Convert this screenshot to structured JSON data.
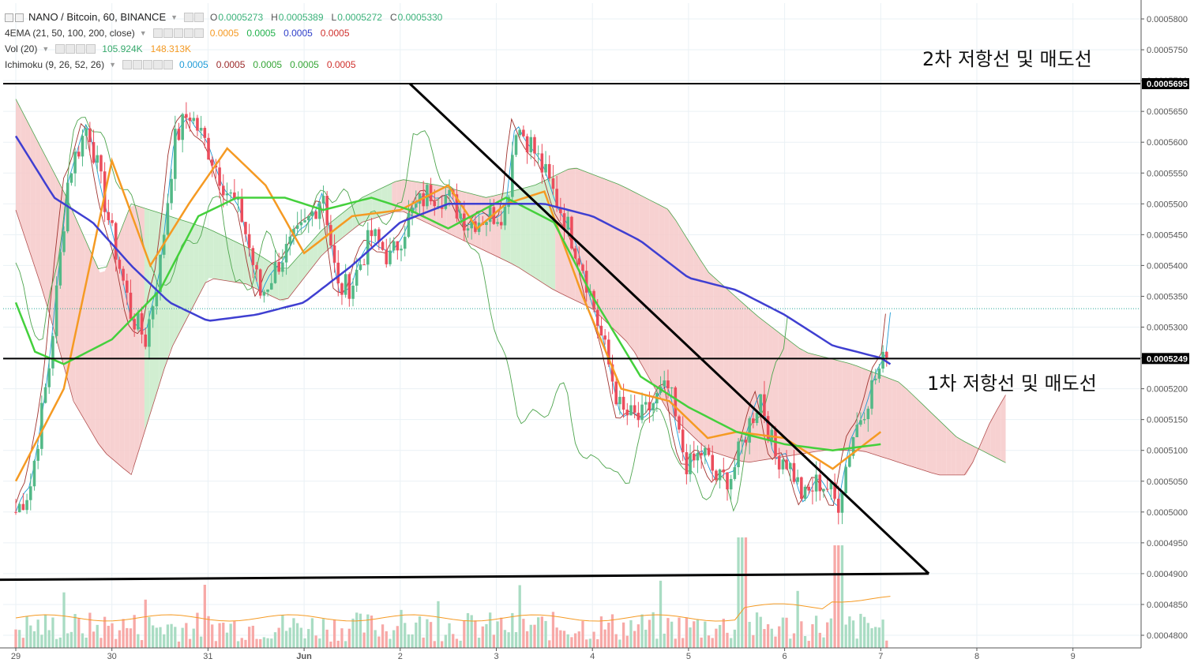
{
  "header": {
    "symbol": "NANO / Bitcoin, 60, BINANCE",
    "o_label": "O",
    "o_value": "0.0005273",
    "h_label": "H",
    "h_value": "0.0005389",
    "l_label": "L",
    "l_value": "0.0005272",
    "c_label": "C",
    "c_value": "0.0005330"
  },
  "indicators": {
    "ema": {
      "name": "4EMA (21, 50, 100, 200, close)",
      "values": [
        "0.0005",
        "0.0005",
        "0.0005",
        "0.0005"
      ],
      "colors": [
        "#f59a23",
        "#22b14c",
        "#2e3ec9",
        "#d0312d"
      ]
    },
    "vol": {
      "name": "Vol (20)",
      "values": [
        "105.924K",
        "148.313K"
      ],
      "colors": [
        "#36a96b",
        "#f59a23"
      ]
    },
    "ichimoku": {
      "name": "Ichimoku (9, 26, 52, 26)",
      "values": [
        "0.0005",
        "0.0005",
        "0.0005",
        "0.0005",
        "0.0005"
      ],
      "colors": [
        "#1e9bd7",
        "#9c2a2a",
        "#34a535",
        "#34a535",
        "#d0312d"
      ]
    }
  },
  "annotations": {
    "second_resistance": "2차 저항선 및 매도선",
    "first_resistance": "1차 저항선 및 매도선"
  },
  "price_tags": {
    "upper": "0.0005695",
    "lower": "0.0005249"
  },
  "chart_data": {
    "type": "candlestick",
    "title": "NANO / Bitcoin, 60, BINANCE",
    "x_ticks": [
      "29",
      "30",
      "31",
      "Jun",
      "2",
      "3",
      "4",
      "5",
      "6",
      "7",
      "8",
      "9"
    ],
    "y_ticks": [
      "0.0005800",
      "0.0005750",
      "0.0005700",
      "0.0005650",
      "0.0005600",
      "0.0005550",
      "0.0005500",
      "0.0005450",
      "0.0005400",
      "0.0005350",
      "0.0005300",
      "0.0005250",
      "0.0005200",
      "0.0005150",
      "0.0005100",
      "0.0005050",
      "0.0005000",
      "0.0004950",
      "0.0004900",
      "0.0004850",
      "0.0004800"
    ],
    "ylim": [
      0.000478,
      0.000581
    ],
    "last_close": 0.000533,
    "horizontal_lines": [
      0.0005695,
      0.0005249
    ],
    "close_path": [
      [
        0.0,
        0.0005
      ],
      [
        0.15,
        0.000504
      ],
      [
        0.35,
        0.000524
      ],
      [
        0.55,
        0.000555
      ],
      [
        0.75,
        0.000563
      ],
      [
        1.0,
        0.000545
      ],
      [
        1.2,
        0.000532
      ],
      [
        1.35,
        0.000528
      ],
      [
        1.5,
        0.00054
      ],
      [
        1.65,
        0.00056
      ],
      [
        1.8,
        0.000565
      ],
      [
        2.0,
        0.000559
      ],
      [
        2.2,
        0.000552
      ],
      [
        2.35,
        0.000548
      ],
      [
        2.55,
        0.000535
      ],
      [
        2.75,
        0.000541
      ],
      [
        3.0,
        0.000546
      ],
      [
        3.2,
        0.000552
      ],
      [
        3.35,
        0.000536
      ],
      [
        3.5,
        0.000537
      ],
      [
        3.7,
        0.000545
      ],
      [
        3.9,
        0.000541
      ],
      [
        4.1,
        0.000548
      ],
      [
        4.3,
        0.000552
      ],
      [
        4.5,
        0.000551
      ],
      [
        4.7,
        0.000547
      ],
      [
        4.9,
        0.000548
      ],
      [
        5.1,
        0.000549
      ],
      [
        5.2,
        0.000563
      ],
      [
        5.35,
        0.00056
      ],
      [
        5.5,
        0.000555
      ],
      [
        5.7,
        0.000548
      ],
      [
        5.9,
        0.00054
      ],
      [
        6.1,
        0.000528
      ],
      [
        6.3,
        0.000516
      ],
      [
        6.5,
        0.000515
      ],
      [
        6.7,
        0.000519
      ],
      [
        6.8,
        0.00052
      ],
      [
        6.9,
        0.000512
      ],
      [
        7.0,
        0.000507
      ],
      [
        7.15,
        0.00051
      ],
      [
        7.3,
        0.000505
      ],
      [
        7.45,
        0.000506
      ],
      [
        7.6,
        0.000513
      ],
      [
        7.75,
        0.000519
      ],
      [
        7.9,
        0.000509
      ],
      [
        8.0,
        0.000509
      ],
      [
        8.1,
        0.000506
      ],
      [
        8.2,
        0.000502
      ],
      [
        8.35,
        0.000505
      ],
      [
        8.45,
        0.000504
      ],
      [
        8.55,
        0.000501
      ],
      [
        8.7,
        0.000512
      ],
      [
        8.85,
        0.000518
      ],
      [
        8.95,
        0.000522
      ],
      [
        9.05,
        0.000525
      ],
      [
        9.1,
        0.000533
      ]
    ],
    "triangle": [
      [
        4.1,
        0.0005695
      ],
      [
        9.5,
        0.00049
      ],
      [
        -0.2,
        0.000489
      ]
    ],
    "ema_lines": [
      {
        "name": "EMA 21",
        "color": "#f59a23",
        "points": [
          [
            0.0,
            0.000505
          ],
          [
            0.5,
            0.00052
          ],
          [
            1.0,
            0.000557
          ],
          [
            1.4,
            0.00054
          ],
          [
            1.8,
            0.00055
          ],
          [
            2.2,
            0.000559
          ],
          [
            2.6,
            0.000553
          ],
          [
            3.0,
            0.000542
          ],
          [
            3.5,
            0.000548
          ],
          [
            4.0,
            0.000549
          ],
          [
            4.5,
            0.000553
          ],
          [
            4.8,
            0.000546
          ],
          [
            5.1,
            0.00055
          ],
          [
            5.5,
            0.000552
          ],
          [
            5.9,
            0.000535
          ],
          [
            6.3,
            0.00052
          ],
          [
            6.8,
            0.000518
          ],
          [
            7.2,
            0.000512
          ],
          [
            7.5,
            0.000513
          ],
          [
            8.0,
            0.000512
          ],
          [
            8.5,
            0.000507
          ],
          [
            9.0,
            0.000513
          ]
        ]
      },
      {
        "name": "EMA 50",
        "color": "#44d03c",
        "points": [
          [
            0.0,
            0.000534
          ],
          [
            0.2,
            0.000526
          ],
          [
            0.5,
            0.000524
          ],
          [
            1.0,
            0.000528
          ],
          [
            1.5,
            0.000536
          ],
          [
            1.9,
            0.000548
          ],
          [
            2.3,
            0.000551
          ],
          [
            2.8,
            0.000551
          ],
          [
            3.2,
            0.000549
          ],
          [
            3.7,
            0.000551
          ],
          [
            4.1,
            0.000549
          ],
          [
            4.5,
            0.000546
          ],
          [
            5.1,
            0.000551
          ],
          [
            5.6,
            0.000547
          ],
          [
            6.0,
            0.000535
          ],
          [
            6.5,
            0.000522
          ],
          [
            7.0,
            0.000517
          ],
          [
            7.5,
            0.000513
          ],
          [
            8.0,
            0.000511
          ],
          [
            8.5,
            0.00051
          ],
          [
            9.0,
            0.000511
          ]
        ]
      },
      {
        "name": "EMA 100",
        "color": "#3f3fd1",
        "points": [
          [
            0.0,
            0.000561
          ],
          [
            0.4,
            0.000551
          ],
          [
            0.8,
            0.000547
          ],
          [
            1.2,
            0.00054
          ],
          [
            1.6,
            0.000534
          ],
          [
            2.0,
            0.000531
          ],
          [
            2.5,
            0.000532
          ],
          [
            3.0,
            0.000534
          ],
          [
            3.5,
            0.00054
          ],
          [
            4.0,
            0.000547
          ],
          [
            4.5,
            0.00055
          ],
          [
            5.0,
            0.00055
          ],
          [
            5.5,
            0.00055
          ],
          [
            6.0,
            0.000548
          ],
          [
            6.5,
            0.000544
          ],
          [
            7.0,
            0.000538
          ],
          [
            7.5,
            0.000536
          ],
          [
            8.0,
            0.000532
          ],
          [
            8.5,
            0.000527
          ],
          [
            9.0,
            0.000525
          ],
          [
            9.1,
            0.000524
          ]
        ]
      }
    ],
    "cloud_upper": [
      [
        0.0,
        0.000567
      ],
      [
        0.5,
        0.000552
      ],
      [
        0.9,
        0.000538
      ],
      [
        1.2,
        0.00055
      ],
      [
        1.6,
        0.000548
      ],
      [
        2.0,
        0.000546
      ],
      [
        2.4,
        0.000543
      ],
      [
        2.8,
        0.000539
      ],
      [
        3.2,
        0.000546
      ],
      [
        3.6,
        0.000551
      ],
      [
        4.0,
        0.000554
      ],
      [
        4.4,
        0.000553
      ],
      [
        4.9,
        0.000551
      ],
      [
        5.4,
        0.000553
      ],
      [
        5.8,
        0.000556
      ],
      [
        6.3,
        0.000553
      ],
      [
        6.8,
        0.000549
      ],
      [
        7.2,
        0.000539
      ],
      [
        7.7,
        0.000532
      ],
      [
        8.2,
        0.000526
      ],
      [
        8.7,
        0.000524
      ],
      [
        9.2,
        0.000521
      ],
      [
        9.8,
        0.000512
      ],
      [
        10.3,
        0.000508
      ]
    ],
    "cloud_lower": [
      [
        0.0,
        0.000549
      ],
      [
        0.3,
        0.000535
      ],
      [
        0.6,
        0.000518
      ],
      [
        0.9,
        0.00051
      ],
      [
        1.2,
        0.000506
      ],
      [
        1.6,
        0.000526
      ],
      [
        2.0,
        0.000538
      ],
      [
        2.4,
        0.000537
      ],
      [
        2.8,
        0.000534
      ],
      [
        3.2,
        0.000542
      ],
      [
        3.6,
        0.000547
      ],
      [
        4.0,
        0.000549
      ],
      [
        4.4,
        0.000546
      ],
      [
        4.8,
        0.000543
      ],
      [
        5.2,
        0.00054
      ],
      [
        5.6,
        0.000536
      ],
      [
        6.0,
        0.000533
      ],
      [
        6.4,
        0.000527
      ],
      [
        6.8,
        0.000516
      ],
      [
        7.2,
        0.00051
      ],
      [
        7.6,
        0.000508
      ],
      [
        8.0,
        0.000509
      ],
      [
        8.4,
        0.00051
      ],
      [
        8.8,
        0.00051
      ],
      [
        9.2,
        0.000508
      ],
      [
        9.6,
        0.000506
      ],
      [
        9.9,
        0.000506
      ],
      [
        10.15,
        0.000515
      ],
      [
        10.3,
        0.000519
      ]
    ],
    "volume": {
      "max": 3.0,
      "bar_count": 236
    }
  },
  "colors": {
    "bull": "#53b987",
    "bear": "#eb4d5c",
    "bull_vol": "#a9dcc3",
    "bear_vol": "#f7a9a7",
    "cloud_bull": "#c9ebc9",
    "cloud_bear": "#f6c9c9",
    "grid": "#eaf1f5",
    "axis": "#555555"
  }
}
